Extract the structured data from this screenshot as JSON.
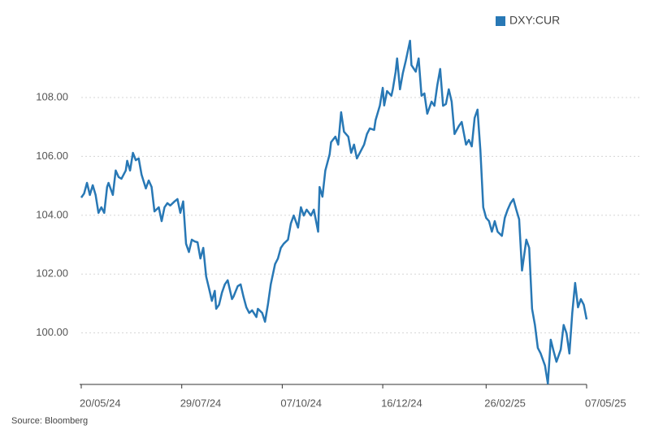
{
  "chart_data": {
    "type": "line",
    "legend": "top-right",
    "source": "Source: Bloomberg",
    "series": [
      {
        "name": "DXY:CUR",
        "color": "#2878b5",
        "values": [
          104.6,
          104.74,
          105.1,
          104.69,
          105.02,
          104.69,
          104.08,
          104.27,
          104.08,
          104.96,
          105.1,
          104.69,
          105.52,
          105.3,
          105.24,
          105.52,
          105.85,
          105.52,
          106.12,
          105.87,
          105.93,
          105.38,
          104.91,
          105.18,
          104.96,
          104.13,
          104.27,
          103.8,
          104.27,
          104.41,
          104.33,
          104.47,
          104.55,
          104.08,
          104.47,
          103.03,
          102.75,
          103.17,
          103.11,
          103.08,
          102.53,
          102.89,
          101.92,
          101.51,
          101.09,
          101.43,
          100.82,
          100.96,
          101.37,
          101.65,
          101.79,
          101.15,
          101.23,
          101.59,
          101.65,
          101.23,
          100.87,
          100.68,
          100.77,
          100.54,
          100.82,
          100.68,
          100.38,
          100.96,
          101.65,
          102.34,
          102.53,
          102.89,
          103.03,
          103.17,
          103.72,
          103.99,
          103.58,
          104.27,
          103.99,
          104.19,
          103.99,
          104.19,
          103.44,
          104.96,
          104.63,
          105.52,
          106.07,
          106.48,
          106.67,
          106.4,
          107.5,
          106.84,
          106.67,
          106.12,
          106.4,
          105.93,
          106.21,
          106.4,
          106.76,
          106.95,
          106.9,
          107.23,
          107.73,
          108.33,
          107.73,
          108.22,
          108.06,
          108.28,
          108.88,
          109.33,
          108.28,
          108.83,
          109.24,
          109.93,
          109.1,
          108.88,
          109.33,
          108.06,
          108.14,
          107.45,
          107.86,
          107.72,
          108.42,
          108.97,
          107.72,
          107.78,
          108.28,
          107.86,
          106.76,
          107.03,
          107.17,
          106.4,
          106.56,
          106.34,
          107.31,
          107.59,
          106.21,
          104.27,
          103.91,
          103.8,
          103.44,
          103.8,
          103.44,
          103.3,
          103.91,
          104.19,
          104.41,
          104.55,
          104.19,
          103.86,
          102.12,
          103.17,
          102.89,
          100.82,
          100.27,
          99.49,
          99.3,
          98.89,
          98.28,
          99.77,
          99.38,
          99.02,
          99.44,
          100.27,
          99.99,
          99.3,
          100.68,
          101.7,
          100.87,
          101.15,
          100.96,
          100.46
        ]
      }
    ],
    "x": [
      "2024-05-20",
      "2024-05-22",
      "2024-05-24",
      "2024-05-26",
      "2024-05-28",
      "2024-05-30",
      "2024-06-01",
      "2024-06-03",
      "2024-06-05",
      "2024-06-07",
      "2024-06-08",
      "2024-06-11",
      "2024-06-13",
      "2024-06-15",
      "2024-06-17",
      "2024-06-20",
      "2024-06-21",
      "2024-06-23",
      "2024-06-25",
      "2024-06-27",
      "2024-06-29",
      "2024-07-01",
      "2024-07-04",
      "2024-07-06",
      "2024-07-08",
      "2024-07-10",
      "2024-07-13",
      "2024-07-15",
      "2024-07-17",
      "2024-07-19",
      "2024-07-21",
      "2024-07-24",
      "2024-07-26",
      "2024-07-28",
      "2024-07-30",
      "2024-08-01",
      "2024-08-03",
      "2024-08-05",
      "2024-08-07",
      "2024-08-09",
      "2024-08-11",
      "2024-08-13",
      "2024-08-15",
      "2024-08-17",
      "2024-08-19",
      "2024-08-21",
      "2024-08-22",
      "2024-08-24",
      "2024-08-26",
      "2024-08-28",
      "2024-08-30",
      "2024-09-02",
      "2024-09-03",
      "2024-09-06",
      "2024-09-08",
      "2024-09-10",
      "2024-09-12",
      "2024-09-14",
      "2024-09-16",
      "2024-09-19",
      "2024-09-20",
      "2024-09-23",
      "2024-09-25",
      "2024-09-27",
      "2024-09-29",
      "2024-10-02",
      "2024-10-04",
      "2024-10-06",
      "2024-10-08",
      "2024-10-11",
      "2024-10-13",
      "2024-10-15",
      "2024-10-18",
      "2024-10-20",
      "2024-10-22",
      "2024-10-24",
      "2024-10-27",
      "2024-10-29",
      "2024-11-01",
      "2024-11-02",
      "2024-11-04",
      "2024-11-06",
      "2024-11-09",
      "2024-11-10",
      "2024-11-13",
      "2024-11-15",
      "2024-11-17",
      "2024-11-19",
      "2024-11-22",
      "2024-11-24",
      "2024-11-26",
      "2024-11-28",
      "2024-12-01",
      "2024-12-03",
      "2024-12-05",
      "2024-12-07",
      "2024-12-10",
      "2024-12-11",
      "2024-12-14",
      "2024-12-16",
      "2024-12-17",
      "2024-12-19",
      "2024-12-22",
      "2024-12-23",
      "2024-12-25",
      "2024-12-26",
      "2024-12-28",
      "2024-12-30",
      "2025-01-01",
      "2025-01-04",
      "2025-01-05",
      "2025-01-08",
      "2025-01-10",
      "2025-01-12",
      "2025-01-14",
      "2025-01-16",
      "2025-01-19",
      "2025-01-21",
      "2025-01-23",
      "2025-01-25",
      "2025-01-27",
      "2025-01-29",
      "2025-01-31",
      "2025-02-02",
      "2025-02-04",
      "2025-02-07",
      "2025-02-09",
      "2025-02-12",
      "2025-02-14",
      "2025-02-16",
      "2025-02-18",
      "2025-02-20",
      "2025-02-22",
      "2025-02-24",
      "2025-02-26",
      "2025-02-28",
      "2025-03-02",
      "2025-03-04",
      "2025-03-06",
      "2025-03-09",
      "2025-03-11",
      "2025-03-13",
      "2025-03-15",
      "2025-03-17",
      "2025-03-19",
      "2025-03-21",
      "2025-03-23",
      "2025-03-26",
      "2025-03-28",
      "2025-03-30",
      "2025-04-01",
      "2025-04-03",
      "2025-04-05",
      "2025-04-08",
      "2025-04-10",
      "2025-04-12",
      "2025-04-14",
      "2025-04-16",
      "2025-04-19",
      "2025-04-21",
      "2025-04-23",
      "2025-04-25",
      "2025-04-27",
      "2025-04-29",
      "2025-05-01",
      "2025-05-03",
      "2025-05-05",
      "2025-05-07"
    ],
    "xlim": [
      "2024-05-20",
      "2025-05-07"
    ],
    "xticks": [
      {
        "value": "2024-05-20",
        "label": "20/05/24"
      },
      {
        "value": "2024-07-29",
        "label": "29/07/24"
      },
      {
        "value": "2024-10-07",
        "label": "07/10/24"
      },
      {
        "value": "2024-12-16",
        "label": "16/12/24"
      },
      {
        "value": "2025-02-26",
        "label": "26/02/25"
      },
      {
        "value": "2025-05-07",
        "label": "07/05/25"
      }
    ],
    "ylim": [
      98.25,
      110.5
    ],
    "yticks": [
      {
        "value": 100,
        "label": "100.00"
      },
      {
        "value": 102,
        "label": "102.00"
      },
      {
        "value": 104,
        "label": "104.00"
      },
      {
        "value": 106,
        "label": "106.00"
      },
      {
        "value": 108,
        "label": "108.00"
      }
    ],
    "grid": true
  }
}
